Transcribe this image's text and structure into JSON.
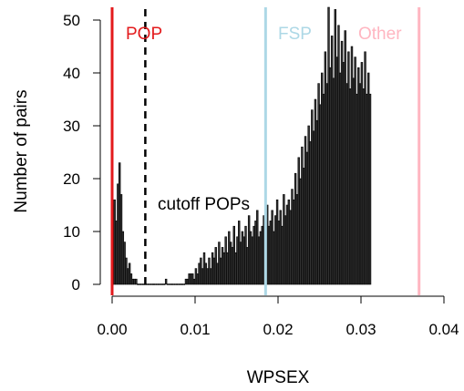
{
  "chart_data": {
    "type": "bar",
    "title": "",
    "xlabel": "WPSEX",
    "ylabel": "Number of pairs",
    "xlim": [
      0.0,
      0.04
    ],
    "ylim": [
      0,
      52
    ],
    "x_ticks": [
      "0.00",
      "0.01",
      "0.02",
      "0.03",
      "0.04"
    ],
    "y_ticks": [
      "0",
      "10",
      "20",
      "30",
      "40",
      "50"
    ],
    "bin_width": 0.0002,
    "bin_start": 0.0,
    "values": [
      15,
      16,
      12,
      19,
      23,
      17,
      10,
      8,
      5,
      3,
      4,
      2,
      1,
      1,
      1,
      0,
      0,
      0,
      0,
      0,
      0,
      0,
      0,
      0,
      0,
      0,
      0,
      0,
      0,
      0,
      0,
      0,
      1,
      0,
      0,
      0,
      0,
      0,
      0,
      0,
      0,
      0,
      0,
      0,
      1,
      1,
      2,
      2,
      2,
      1,
      3,
      2,
      4,
      5,
      3,
      6,
      4,
      3,
      5,
      3,
      6,
      5,
      7,
      4,
      8,
      5,
      7,
      6,
      9,
      6,
      10,
      8,
      7,
      11,
      6,
      9,
      12,
      8,
      10,
      9,
      11,
      7,
      13,
      10,
      9,
      11,
      12,
      14,
      9,
      10,
      11,
      13,
      10,
      15,
      11,
      12,
      14,
      10,
      13,
      16,
      12,
      14,
      11,
      17,
      13,
      15,
      16,
      14,
      18,
      16,
      21,
      17,
      24,
      20,
      26,
      22,
      28,
      25,
      30,
      27,
      33,
      29,
      35,
      31,
      38,
      34,
      40,
      36,
      44,
      38,
      53,
      41,
      47,
      39,
      52,
      43,
      49,
      40,
      46,
      42,
      48,
      38,
      44,
      37,
      45,
      39,
      43,
      36,
      41,
      38,
      42,
      37,
      44,
      36,
      40,
      36
    ],
    "vlines": [
      {
        "label": "POP",
        "x": 0.0,
        "color": "#e31a1c",
        "style": "solid"
      },
      {
        "label": "cutoff POPs",
        "x": 0.004,
        "color": "#000000",
        "style": "dashed"
      },
      {
        "label": "FSP",
        "x": 0.0185,
        "color": "#add8e6",
        "style": "solid"
      },
      {
        "label": "Other",
        "x": 0.037,
        "color": "#ffb6c1",
        "style": "solid"
      }
    ]
  }
}
